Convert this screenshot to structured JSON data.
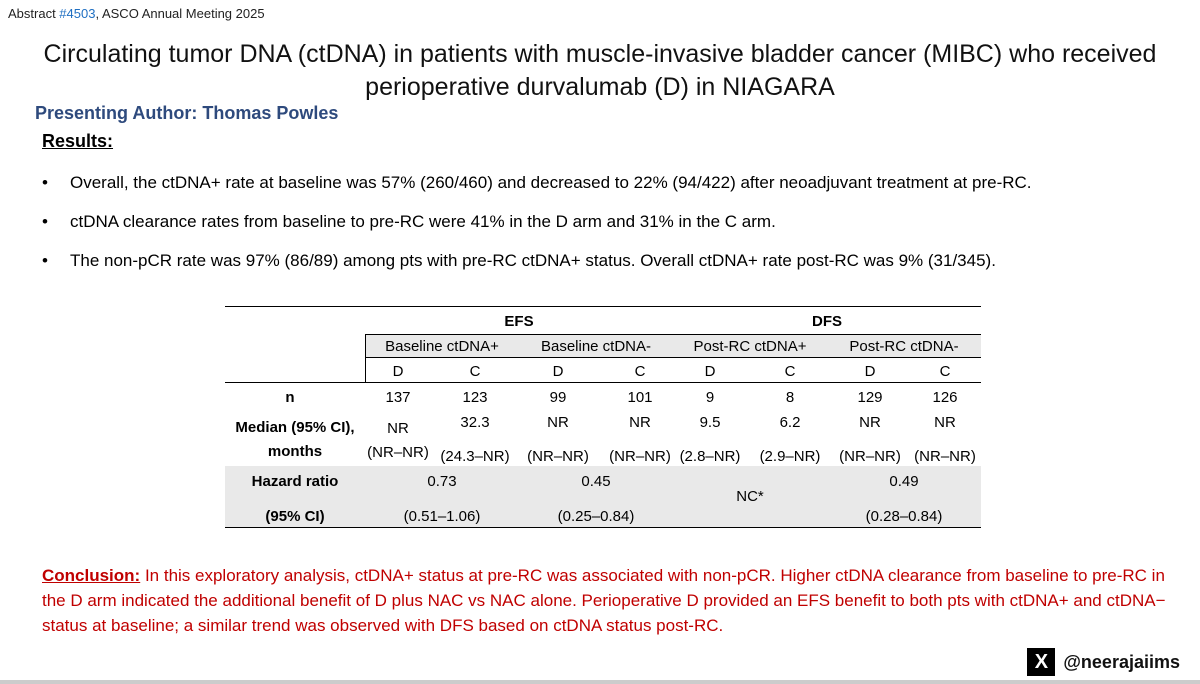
{
  "header": {
    "prefix": "Abstract ",
    "abstract_link": "#4503",
    "suffix": ", ASCO Annual Meeting 2025",
    "title_line1": "Circulating tumor DNA (ctDNA) in patients with muscle-invasive bladder cancer (MIBC) who received",
    "title_line2": "perioperative durvalumab (D) in NIAGARA",
    "author": "Presenting Author: Thomas Powles",
    "results_label": "Results:"
  },
  "bullets": [
    "Overall, the ctDNA+ rate at baseline was 57% (260/460) and decreased to 22% (94/422) after neoadjuvant treatment at pre-RC.",
    "ctDNA clearance rates from baseline to pre-RC were 41% in the D arm and 31% in the C arm.",
    "The non-pCR rate was 97% (86/89) among pts with pre-RC ctDNA+ status. Overall ctDNA+ rate post-RC was 9% (31/345)."
  ],
  "bullet_symbol": "•",
  "table": {
    "efs": "EFS",
    "dfs": "DFS",
    "groups": [
      "Baseline ctDNA+",
      "Baseline ctDNA-",
      "Post-RC ctDNA+",
      "Post-RC ctDNA-"
    ],
    "arms": [
      "D",
      "C",
      "D",
      "C",
      "D",
      "C",
      "D",
      "C"
    ],
    "n_label": "n",
    "n": [
      "137",
      "123",
      "99",
      "101",
      "9",
      "8",
      "129",
      "126"
    ],
    "median_label_1": "Median (95% CI),",
    "median_label_2": "months",
    "median": [
      "NR",
      "32.3",
      "NR",
      "NR",
      "9.5",
      "6.2",
      "NR",
      "NR"
    ],
    "ci": [
      "(NR–NR)",
      "(24.3–NR)",
      "(NR–NR)",
      "(NR–NR)",
      "(2.8–NR)",
      "(2.9–NR)",
      "(NR–NR)",
      "(NR–NR)"
    ],
    "hr_label": "Hazard ratio",
    "hr_ci_label": "(95% CI)",
    "hr": [
      "0.73",
      "0.45",
      "NC*",
      "0.49"
    ],
    "hr_ci": [
      "(0.51–1.06)",
      "(0.25–0.84)",
      "",
      "(0.28–0.84)"
    ]
  },
  "conclusion": {
    "head": "Conclusion:",
    "body": " In this exploratory analysis, ctDNA+ status at pre-RC was associated with non-pCR. Higher ctDNA clearance from baseline to pre-RC in the D arm indicated the additional benefit of D plus NAC vs NAC alone. Perioperative D provided an EFS benefit to both pts with ctDNA+ and ctDNA− status at baseline; a similar trend was observed with DFS based on ctDNA status post-RC."
  },
  "footer": {
    "x_icon": "X",
    "handle": "@neerajaiims"
  },
  "colors": {
    "author": "#2e4a7d",
    "conclusion": "#c00000",
    "link": "#1f6fc2",
    "table_band": "#e9e9e9"
  }
}
